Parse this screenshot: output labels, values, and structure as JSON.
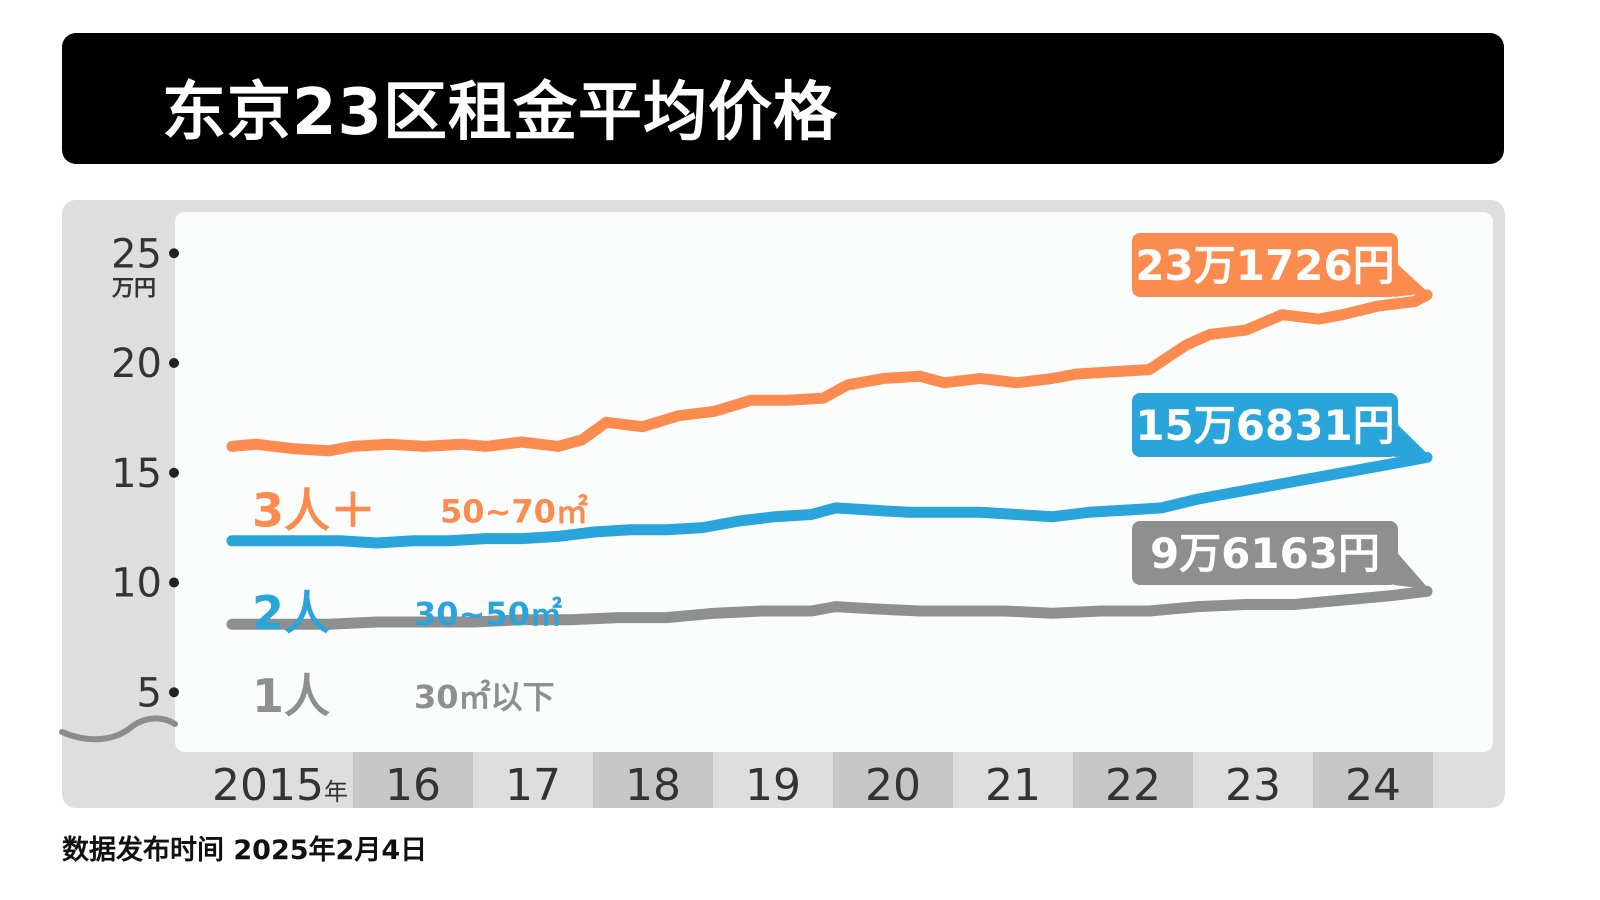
{
  "title": "东京23区租金平均价格",
  "footer": "数据发布时间 2025年2月4日",
  "colors": {
    "orange": "#fb8b4e",
    "blue": "#2aa5db",
    "gray": "#8f8f8f",
    "panel": "#dedede",
    "axis_band": "#c6c6c6"
  },
  "chart_data": {
    "type": "line",
    "ylim": [
      5,
      25
    ],
    "yticks": [
      25,
      20,
      15,
      10,
      5
    ],
    "ytick_labels": [
      "25",
      "20",
      "15",
      "10",
      "5"
    ],
    "y_unit": "万円",
    "x_year_labels": [
      "2015年",
      "16",
      "17",
      "18",
      "19",
      "20",
      "21",
      "22",
      "23",
      "24"
    ],
    "x_range": [
      2015.0,
      2024.9
    ],
    "series": [
      {
        "name": "3人＋",
        "size": "50~70㎡",
        "color": "#fb8b4e",
        "end_label": "23万1726円",
        "x": [
          2015.0,
          2015.2,
          2015.5,
          2015.8,
          2016.0,
          2016.3,
          2016.6,
          2016.9,
          2017.1,
          2017.4,
          2017.7,
          2017.9,
          2018.1,
          2018.4,
          2018.7,
          2019.0,
          2019.3,
          2019.6,
          2019.9,
          2020.1,
          2020.4,
          2020.7,
          2020.9,
          2021.2,
          2021.5,
          2021.8,
          2022.0,
          2022.3,
          2022.6,
          2022.9,
          2023.1,
          2023.4,
          2023.7,
          2024.0,
          2024.2,
          2024.5,
          2024.8,
          2024.9
        ],
        "y": [
          16.2,
          16.3,
          16.1,
          16.0,
          16.2,
          16.3,
          16.2,
          16.3,
          16.2,
          16.4,
          16.2,
          16.5,
          17.3,
          17.1,
          17.6,
          17.8,
          18.3,
          18.3,
          18.4,
          19.0,
          19.3,
          19.4,
          19.1,
          19.3,
          19.1,
          19.3,
          19.5,
          19.6,
          19.7,
          20.8,
          21.3,
          21.5,
          22.2,
          22.0,
          22.2,
          22.6,
          22.8,
          23.1
        ]
      },
      {
        "name": "2人",
        "size": "30~50㎡",
        "color": "#2aa5db",
        "end_label": "15万6831円",
        "x": [
          2015.0,
          2015.3,
          2015.6,
          2015.9,
          2016.2,
          2016.5,
          2016.8,
          2017.1,
          2017.4,
          2017.7,
          2018.0,
          2018.3,
          2018.6,
          2018.9,
          2019.2,
          2019.5,
          2019.8,
          2020.0,
          2020.3,
          2020.6,
          2020.9,
          2021.2,
          2021.5,
          2021.8,
          2022.1,
          2022.4,
          2022.7,
          2023.0,
          2023.3,
          2023.6,
          2023.9,
          2024.2,
          2024.5,
          2024.9
        ],
        "y": [
          11.9,
          11.9,
          11.9,
          11.9,
          11.8,
          11.9,
          11.9,
          12.0,
          12.0,
          12.1,
          12.3,
          12.4,
          12.4,
          12.5,
          12.8,
          13.0,
          13.1,
          13.4,
          13.3,
          13.2,
          13.2,
          13.2,
          13.1,
          13.0,
          13.2,
          13.3,
          13.4,
          13.8,
          14.1,
          14.4,
          14.7,
          15.0,
          15.3,
          15.7
        ]
      },
      {
        "name": "1人",
        "size": "30㎡以下",
        "color": "#8f8f8f",
        "end_label": "9万6163円",
        "x": [
          2015.0,
          2015.4,
          2015.8,
          2016.2,
          2016.6,
          2017.0,
          2017.4,
          2017.8,
          2018.2,
          2018.6,
          2019.0,
          2019.4,
          2019.8,
          2020.0,
          2020.3,
          2020.7,
          2021.0,
          2021.4,
          2021.8,
          2022.2,
          2022.6,
          2023.0,
          2023.4,
          2023.8,
          2024.2,
          2024.6,
          2024.9
        ],
        "y": [
          8.1,
          8.1,
          8.1,
          8.2,
          8.2,
          8.2,
          8.3,
          8.3,
          8.4,
          8.4,
          8.6,
          8.7,
          8.7,
          8.9,
          8.8,
          8.7,
          8.7,
          8.7,
          8.6,
          8.7,
          8.7,
          8.9,
          9.0,
          9.0,
          9.2,
          9.4,
          9.6
        ]
      }
    ]
  }
}
